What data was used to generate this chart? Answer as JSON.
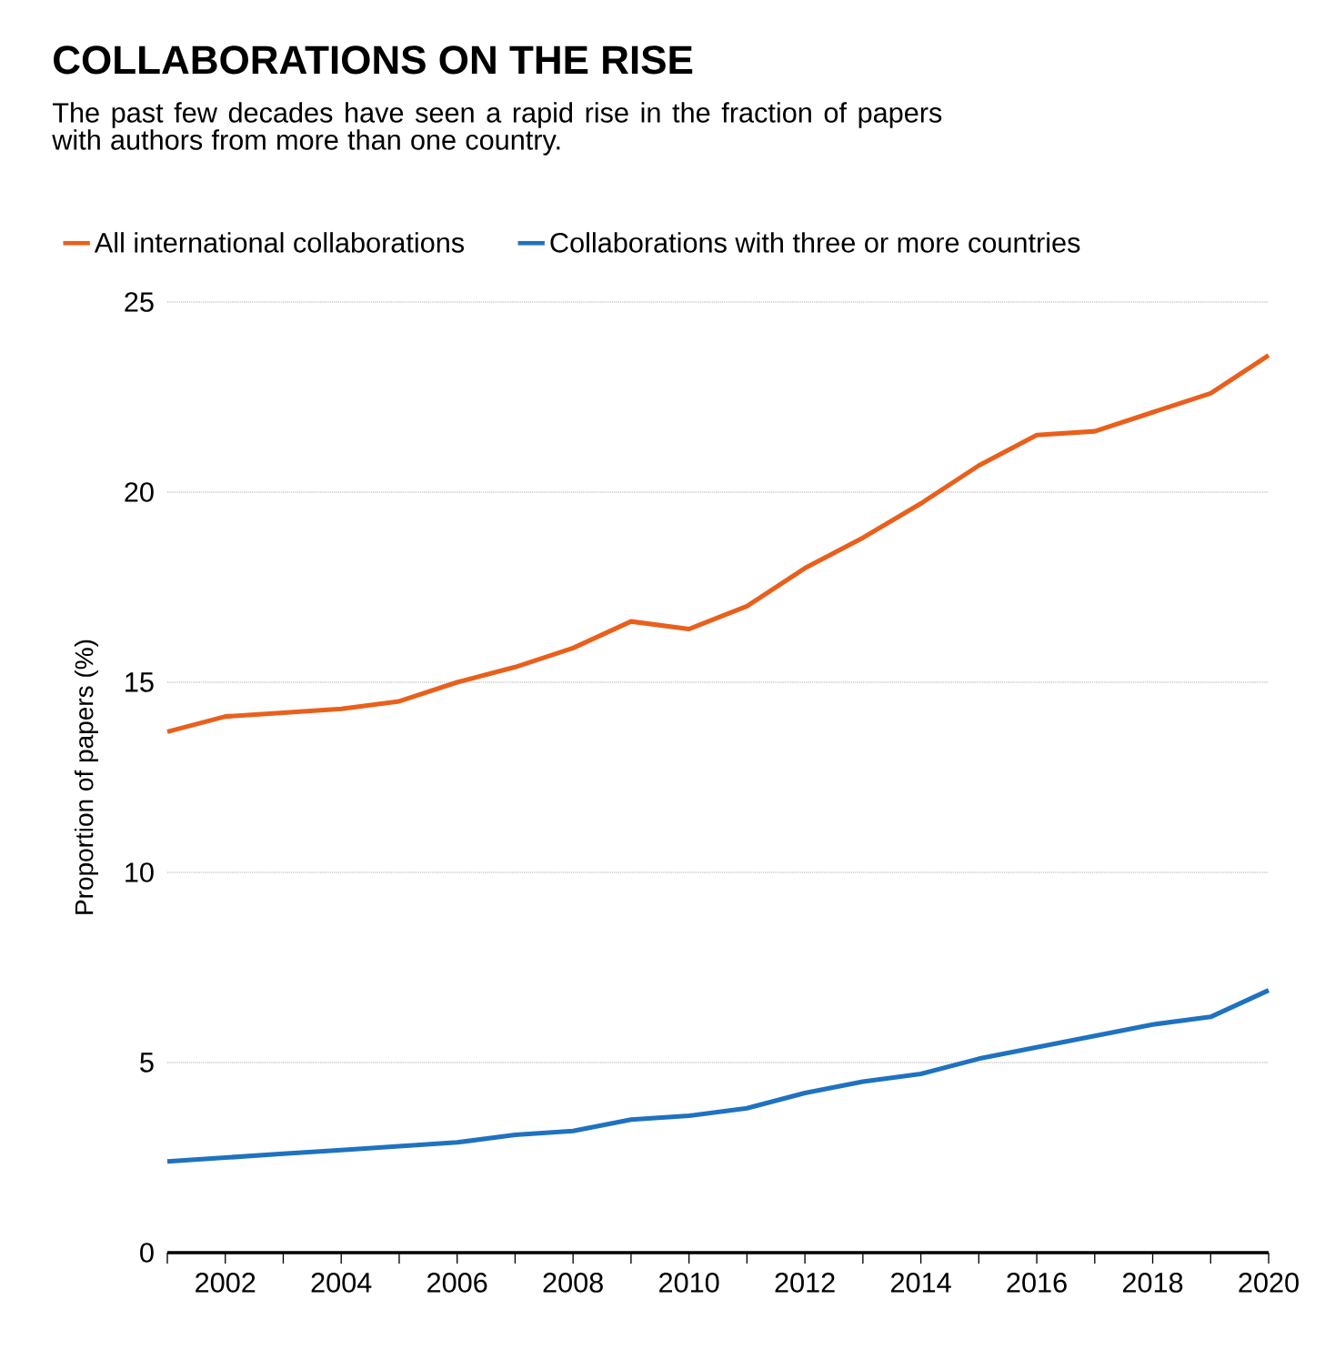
{
  "chart_data": {
    "type": "line",
    "title": "COLLABORATIONS ON THE RISE",
    "subtitle": "The past few decades have seen a rapid rise in the fraction of papers with authors from more than one country.",
    "ylabel": "Proportion of papers (%)",
    "x": [
      2001,
      2002,
      2003,
      2004,
      2005,
      2006,
      2007,
      2008,
      2009,
      2010,
      2011,
      2012,
      2013,
      2014,
      2015,
      2016,
      2017,
      2018,
      2019,
      2020
    ],
    "series": [
      {
        "name": "All international collaborations",
        "color": "#e8601c",
        "values": [
          13.7,
          14.1,
          14.2,
          14.3,
          14.5,
          15.0,
          15.4,
          15.9,
          16.6,
          16.4,
          17.0,
          18.0,
          18.8,
          19.7,
          20.7,
          21.5,
          21.6,
          22.1,
          22.6,
          23.6
        ]
      },
      {
        "name": "Collaborations with three or more countries",
        "color": "#1f72c0",
        "values": [
          2.4,
          2.5,
          2.6,
          2.7,
          2.8,
          2.9,
          3.1,
          3.2,
          3.5,
          3.6,
          3.8,
          4.2,
          4.5,
          4.7,
          5.1,
          5.4,
          5.7,
          6.0,
          6.2,
          6.9
        ]
      }
    ],
    "xlim": [
      2001,
      2020
    ],
    "xticks": [
      {
        "value": 2001,
        "label": null
      },
      2002,
      {
        "value": 2003,
        "label": null
      },
      2004,
      {
        "value": 2005,
        "label": null
      },
      2006,
      {
        "value": 2007,
        "label": null
      },
      2008,
      {
        "value": 2009,
        "label": null
      },
      2010,
      {
        "value": 2011,
        "label": null
      },
      2012,
      {
        "value": 2013,
        "label": null
      },
      2014,
      {
        "value": 2015,
        "label": null
      },
      2016,
      {
        "value": 2017,
        "label": null
      },
      2018,
      {
        "value": 2019,
        "label": null
      },
      2020
    ],
    "ylim": [
      0,
      25
    ],
    "yticks": [
      0,
      5,
      10,
      15,
      20,
      25
    ],
    "grid": "y",
    "legend": "top left",
    "marker": "none",
    "line_style": "solid"
  }
}
